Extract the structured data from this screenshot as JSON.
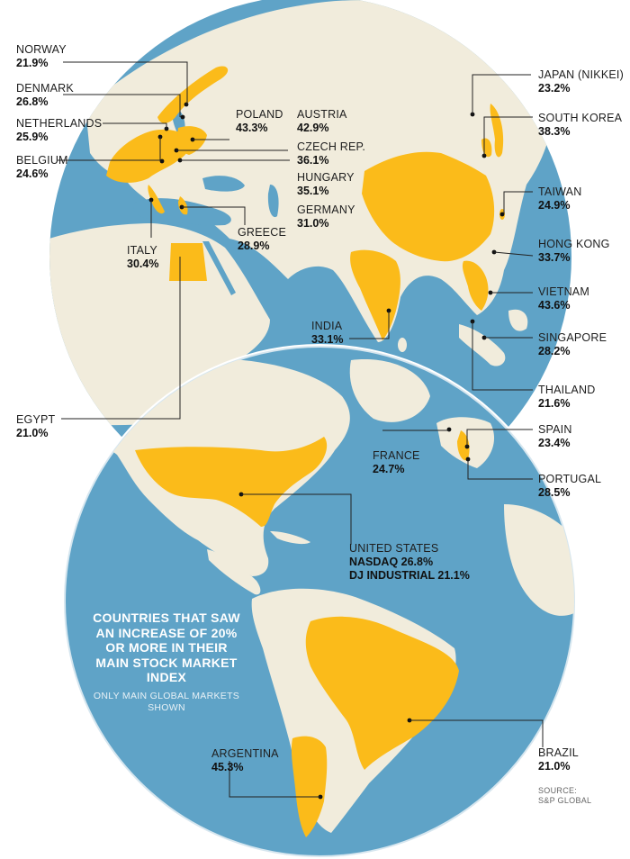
{
  "colors": {
    "ocean": "#5fa3c7",
    "land": "#f1ecdc",
    "highlight": "#fbbb1a",
    "leader": "#222222",
    "background": "#ffffff"
  },
  "labels": [
    {
      "key": "norway",
      "name": "NORWAY",
      "value": "21.9%"
    },
    {
      "key": "denmark",
      "name": "DENMARK",
      "value": "26.8%"
    },
    {
      "key": "netherlands",
      "name": "NETHERLANDS",
      "value": "25.9%"
    },
    {
      "key": "belgium",
      "name": "BELGIUM",
      "value": "24.6%"
    },
    {
      "key": "poland",
      "name": "POLAND",
      "value": "43.3%"
    },
    {
      "key": "austria",
      "name": "AUSTRIA",
      "value": "42.9%"
    },
    {
      "key": "czech",
      "name": "CZECH REP.",
      "value": "36.1%"
    },
    {
      "key": "hungary",
      "name": "HUNGARY",
      "value": "35.1%"
    },
    {
      "key": "germany",
      "name": "GERMANY",
      "value": "31.0%"
    },
    {
      "key": "greece",
      "name": "GREECE",
      "value": "28.9%"
    },
    {
      "key": "italy",
      "name": "ITALY",
      "value": "30.4%"
    },
    {
      "key": "india",
      "name": "INDIA",
      "value": "33.1%"
    },
    {
      "key": "egypt",
      "name": "EGYPT",
      "value": "21.0%"
    },
    {
      "key": "japan",
      "name": "JAPAN (NIKKEI)",
      "value": "23.2%"
    },
    {
      "key": "south_korea",
      "name": "SOUTH KOREA",
      "value": "38.3%"
    },
    {
      "key": "taiwan",
      "name": "TAIWAN",
      "value": "24.9%"
    },
    {
      "key": "hong_kong",
      "name": "HONG KONG",
      "value": "33.7%"
    },
    {
      "key": "vietnam",
      "name": "VIETNAM",
      "value": "43.6%"
    },
    {
      "key": "singapore",
      "name": "SINGAPORE",
      "value": "28.2%"
    },
    {
      "key": "thailand",
      "name": "THAILAND",
      "value": "21.6%"
    },
    {
      "key": "france",
      "name": "FRANCE",
      "value": "24.7%"
    },
    {
      "key": "spain",
      "name": "SPAIN",
      "value": "23.4%"
    },
    {
      "key": "portugal",
      "name": "PORTUGAL",
      "value": "28.5%"
    },
    {
      "key": "brazil",
      "name": "BRAZIL",
      "value": "21.0%"
    },
    {
      "key": "argentina",
      "name": "ARGENTINA",
      "value": "45.3%"
    }
  ],
  "united_states": {
    "name": "UNITED STATES",
    "line1": "NASDAQ 26.8%",
    "line2": "DJ INDUSTRIAL 21.1%"
  },
  "title": "COUNTRIES THAT SAW AN INCREASE OF 20% OR MORE IN THEIR MAIN STOCK MARKET INDEX",
  "subtitle": "ONLY MAIN GLOBAL MARKETS SHOWN",
  "source": "SOURCE: S&P GLOBAL"
}
